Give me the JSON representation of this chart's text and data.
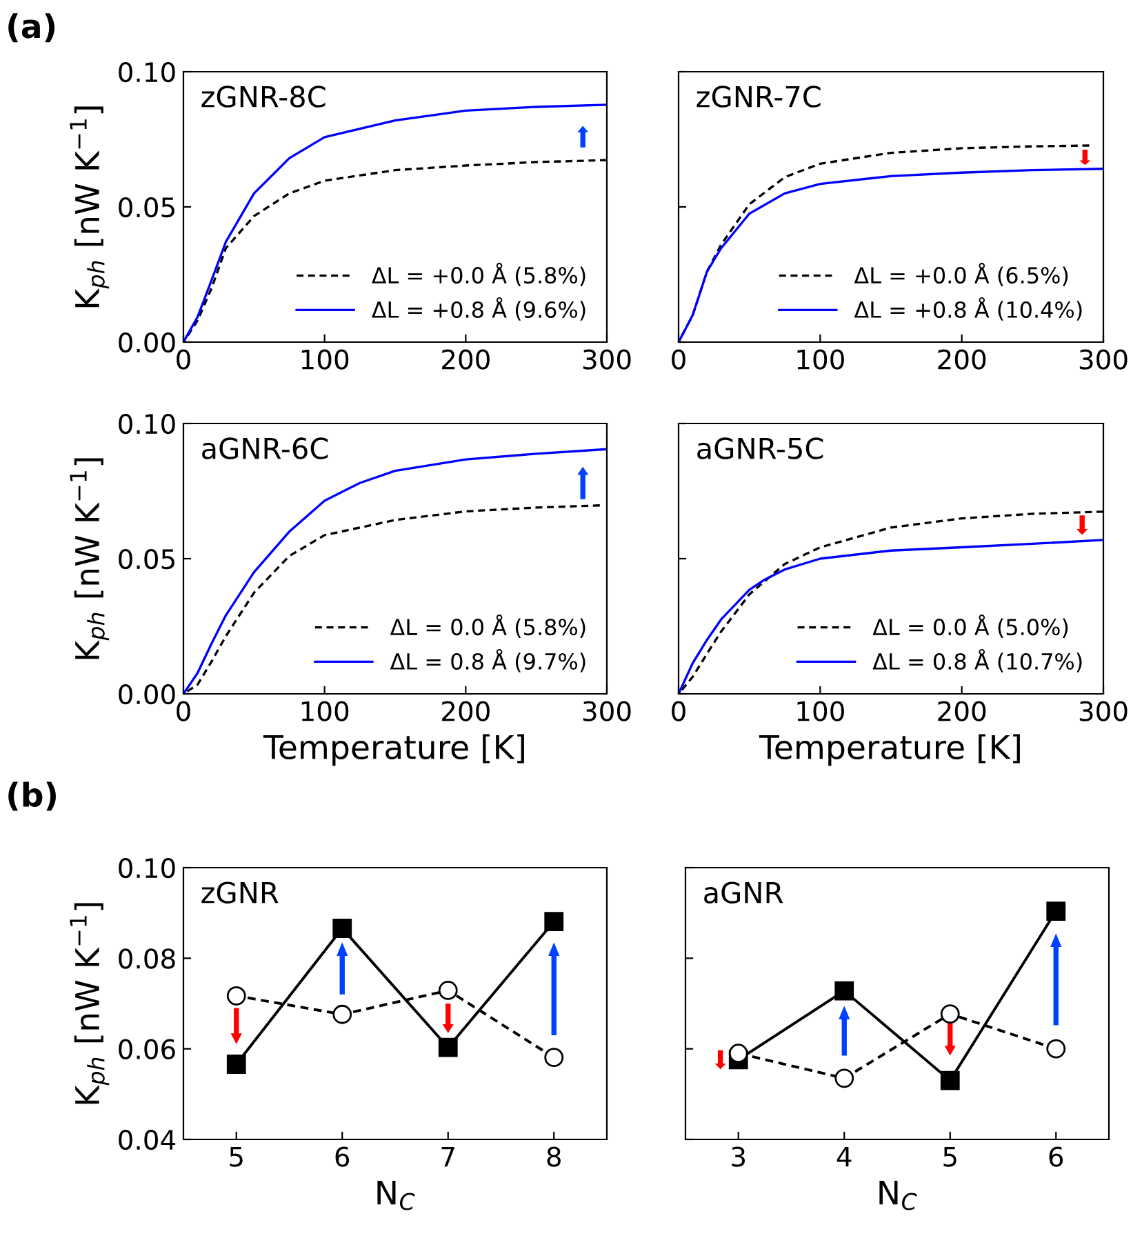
{
  "chart_data": [
    {
      "type": "line",
      "title": "zGNR-8C",
      "annotations": [
        "(a)"
      ],
      "ylabel": "K$_{ph}$ [nW K$^{−1}$]",
      "xlim": [
        0,
        300
      ],
      "xticks": [
        0,
        100,
        200,
        300
      ],
      "ylim": [
        0,
        0.1
      ],
      "yticks": [
        {
          "value": 0,
          "label": "0.00"
        },
        {
          "value": 0.05,
          "label": "0.05"
        },
        {
          "value": 0.1,
          "label": "0.10"
        }
      ],
      "legend": "bottom right",
      "grid": false,
      "x": [
        0,
        10,
        20,
        30,
        50,
        75,
        100,
        150,
        200,
        250,
        300
      ],
      "series": [
        {
          "name": "ΔL = +0.0 Å (5.8%)",
          "color": "#000000",
          "line_style": "dashed",
          "values": [
            0,
            0.008,
            0.02,
            0.0347,
            0.0466,
            0.055,
            0.0597,
            0.0636,
            0.0653,
            0.0666,
            0.0673
          ]
        },
        {
          "name": "ΔL = +0.8 Å (9.6%)",
          "color": "#0000ff",
          "line_style": "solid",
          "values": [
            0,
            0.0093,
            0.023,
            0.037,
            0.055,
            0.068,
            0.0758,
            0.082,
            0.0856,
            0.087,
            0.0878
          ]
        }
      ]
    },
    {
      "type": "line",
      "title": "zGNR-7C",
      "xlim": [
        0,
        300
      ],
      "xticks": [
        0,
        100,
        200,
        300
      ],
      "ylim": [
        0,
        0.1
      ],
      "yticks": [
        {
          "value": 0,
          "label": null
        },
        {
          "value": 0.05,
          "label": null
        },
        {
          "value": 0.1,
          "label": null
        }
      ],
      "tick_labels": "x",
      "legend": "bottom right",
      "grid": false,
      "series": [
        {
          "name": "ΔL = +0.0 Å (6.5%)",
          "color": "#000000",
          "line_style": "dashed",
          "x": [
            0,
            10,
            20,
            30,
            50,
            75,
            100,
            150,
            200,
            250,
            290
          ],
          "values": [
            0,
            0.01,
            0.026,
            0.036,
            0.051,
            0.061,
            0.066,
            0.07,
            0.0717,
            0.0724,
            0.0727
          ]
        },
        {
          "name": "ΔL = +0.8 Å (10.4%)",
          "color": "#0000ff",
          "line_style": "solid",
          "x": [
            0,
            10,
            20,
            30,
            50,
            75,
            100,
            150,
            200,
            250,
            300
          ],
          "values": [
            0,
            0.01,
            0.026,
            0.0347,
            0.0475,
            0.055,
            0.0585,
            0.0614,
            0.0627,
            0.0636,
            0.0641
          ]
        }
      ]
    },
    {
      "type": "line",
      "title": "aGNR-6C",
      "ylabel": "K$_{ph}$ [nW K$^{−1}$]",
      "xlabel": "Temperature [K]",
      "xlim": [
        0,
        300
      ],
      "xticks": [
        0,
        100,
        200,
        300
      ],
      "ylim": [
        0,
        0.1
      ],
      "yticks": [
        {
          "value": 0,
          "label": "0.00"
        },
        {
          "value": 0.05,
          "label": "0.05"
        },
        {
          "value": 0.1,
          "label": "0.10"
        }
      ],
      "legend": "bottom right",
      "grid": false,
      "series": [
        {
          "name": "ΔL = 0.0 Å (5.8%)",
          "color": "#000000",
          "line_style": "dashed",
          "x": [
            0,
            10,
            20,
            30,
            50,
            75,
            100,
            150,
            200,
            250,
            295
          ],
          "values": [
            0,
            0.0034,
            0.012,
            0.0213,
            0.0374,
            0.051,
            0.0587,
            0.0643,
            0.0675,
            0.0689,
            0.0697
          ]
        },
        {
          "name": "ΔL = 0.8 Å (9.7%)",
          "color": "#0000ff",
          "line_style": "solid",
          "x": [
            0,
            10,
            20,
            30,
            50,
            75,
            100,
            125,
            150,
            200,
            250,
            300
          ],
          "values": [
            0,
            0.0077,
            0.0187,
            0.029,
            0.045,
            0.06,
            0.0714,
            0.078,
            0.0825,
            0.0867,
            0.0888,
            0.0905
          ]
        }
      ]
    },
    {
      "type": "line",
      "title": "aGNR-5C",
      "xlabel": "Temperature [K]",
      "xlim": [
        0,
        300
      ],
      "xticks": [
        0,
        100,
        200,
        300
      ],
      "ylim": [
        0,
        0.1
      ],
      "yticks": [
        {
          "value": 0,
          "label": null
        },
        {
          "value": 0.05,
          "label": null
        },
        {
          "value": 0.1,
          "label": null
        }
      ],
      "tick_labels": "x",
      "legend": "bottom right",
      "grid": false,
      "series": [
        {
          "name": "ΔL = 0.0 Å (5.0%)",
          "color": "#000000",
          "line_style": "dashed",
          "x": [
            0,
            10,
            20,
            30,
            50,
            75,
            100,
            150,
            200,
            250,
            300
          ],
          "values": [
            0,
            0.0063,
            0.0148,
            0.023,
            0.0368,
            0.048,
            0.0542,
            0.0615,
            0.0649,
            0.0666,
            0.0674
          ]
        },
        {
          "name": "ΔL = 0.8 Å (10.7%)",
          "color": "#0000ff",
          "line_style": "solid",
          "x": [
            0,
            10,
            20,
            30,
            50,
            60,
            75,
            100,
            150,
            200,
            250,
            300
          ],
          "values": [
            0,
            0.0114,
            0.0199,
            0.0275,
            0.0385,
            0.042,
            0.046,
            0.05,
            0.053,
            0.0542,
            0.0555,
            0.0569
          ]
        }
      ]
    },
    {
      "type": "line",
      "title": "zGNR",
      "annotations": [
        "(b)"
      ],
      "ylabel": "K$_{ph}$ [nW K$^{−1}$]",
      "xlabel": "N$_{C}$",
      "categories": [
        "5",
        "6",
        "7",
        "8"
      ],
      "ylim": [
        0.04,
        0.1
      ],
      "yticks": [
        {
          "value": 0.04,
          "label": "0.04"
        },
        {
          "value": 0.06,
          "label": "0.06"
        },
        {
          "value": 0.08,
          "label": "0.08"
        },
        {
          "value": 0.1,
          "label": "0.10"
        }
      ],
      "grid": false,
      "series": [
        {
          "color": "#000000",
          "marker": "square",
          "line_style": "solid",
          "values": [
            0.0566,
            0.0866,
            0.0603,
            0.0881
          ]
        },
        {
          "color": "#000000",
          "marker": "circle",
          "line_style": "dashed",
          "values": [
            0.0717,
            0.0676,
            0.0729,
            0.0581
          ]
        }
      ]
    },
    {
      "type": "line",
      "title": "aGNR",
      "xlabel": "N$_{C}$",
      "categories": [
        "3",
        "4",
        "5",
        "6"
      ],
      "ylim": [
        0.04,
        0.1
      ],
      "yticks": [
        {
          "value": 0.04,
          "label": null
        },
        {
          "value": 0.06,
          "label": null
        },
        {
          "value": 0.08,
          "label": null
        },
        {
          "value": 0.1,
          "label": null
        }
      ],
      "tick_labels": "x",
      "grid": false,
      "series": [
        {
          "color": "#000000",
          "marker": "square",
          "line_style": "solid",
          "values": [
            0.0576,
            0.0728,
            0.053,
            0.0904
          ]
        },
        {
          "color": "#000000",
          "marker": "circle",
          "line_style": "dashed",
          "values": [
            0.059,
            0.0535,
            0.0677,
            0.06
          ]
        }
      ]
    }
  ]
}
